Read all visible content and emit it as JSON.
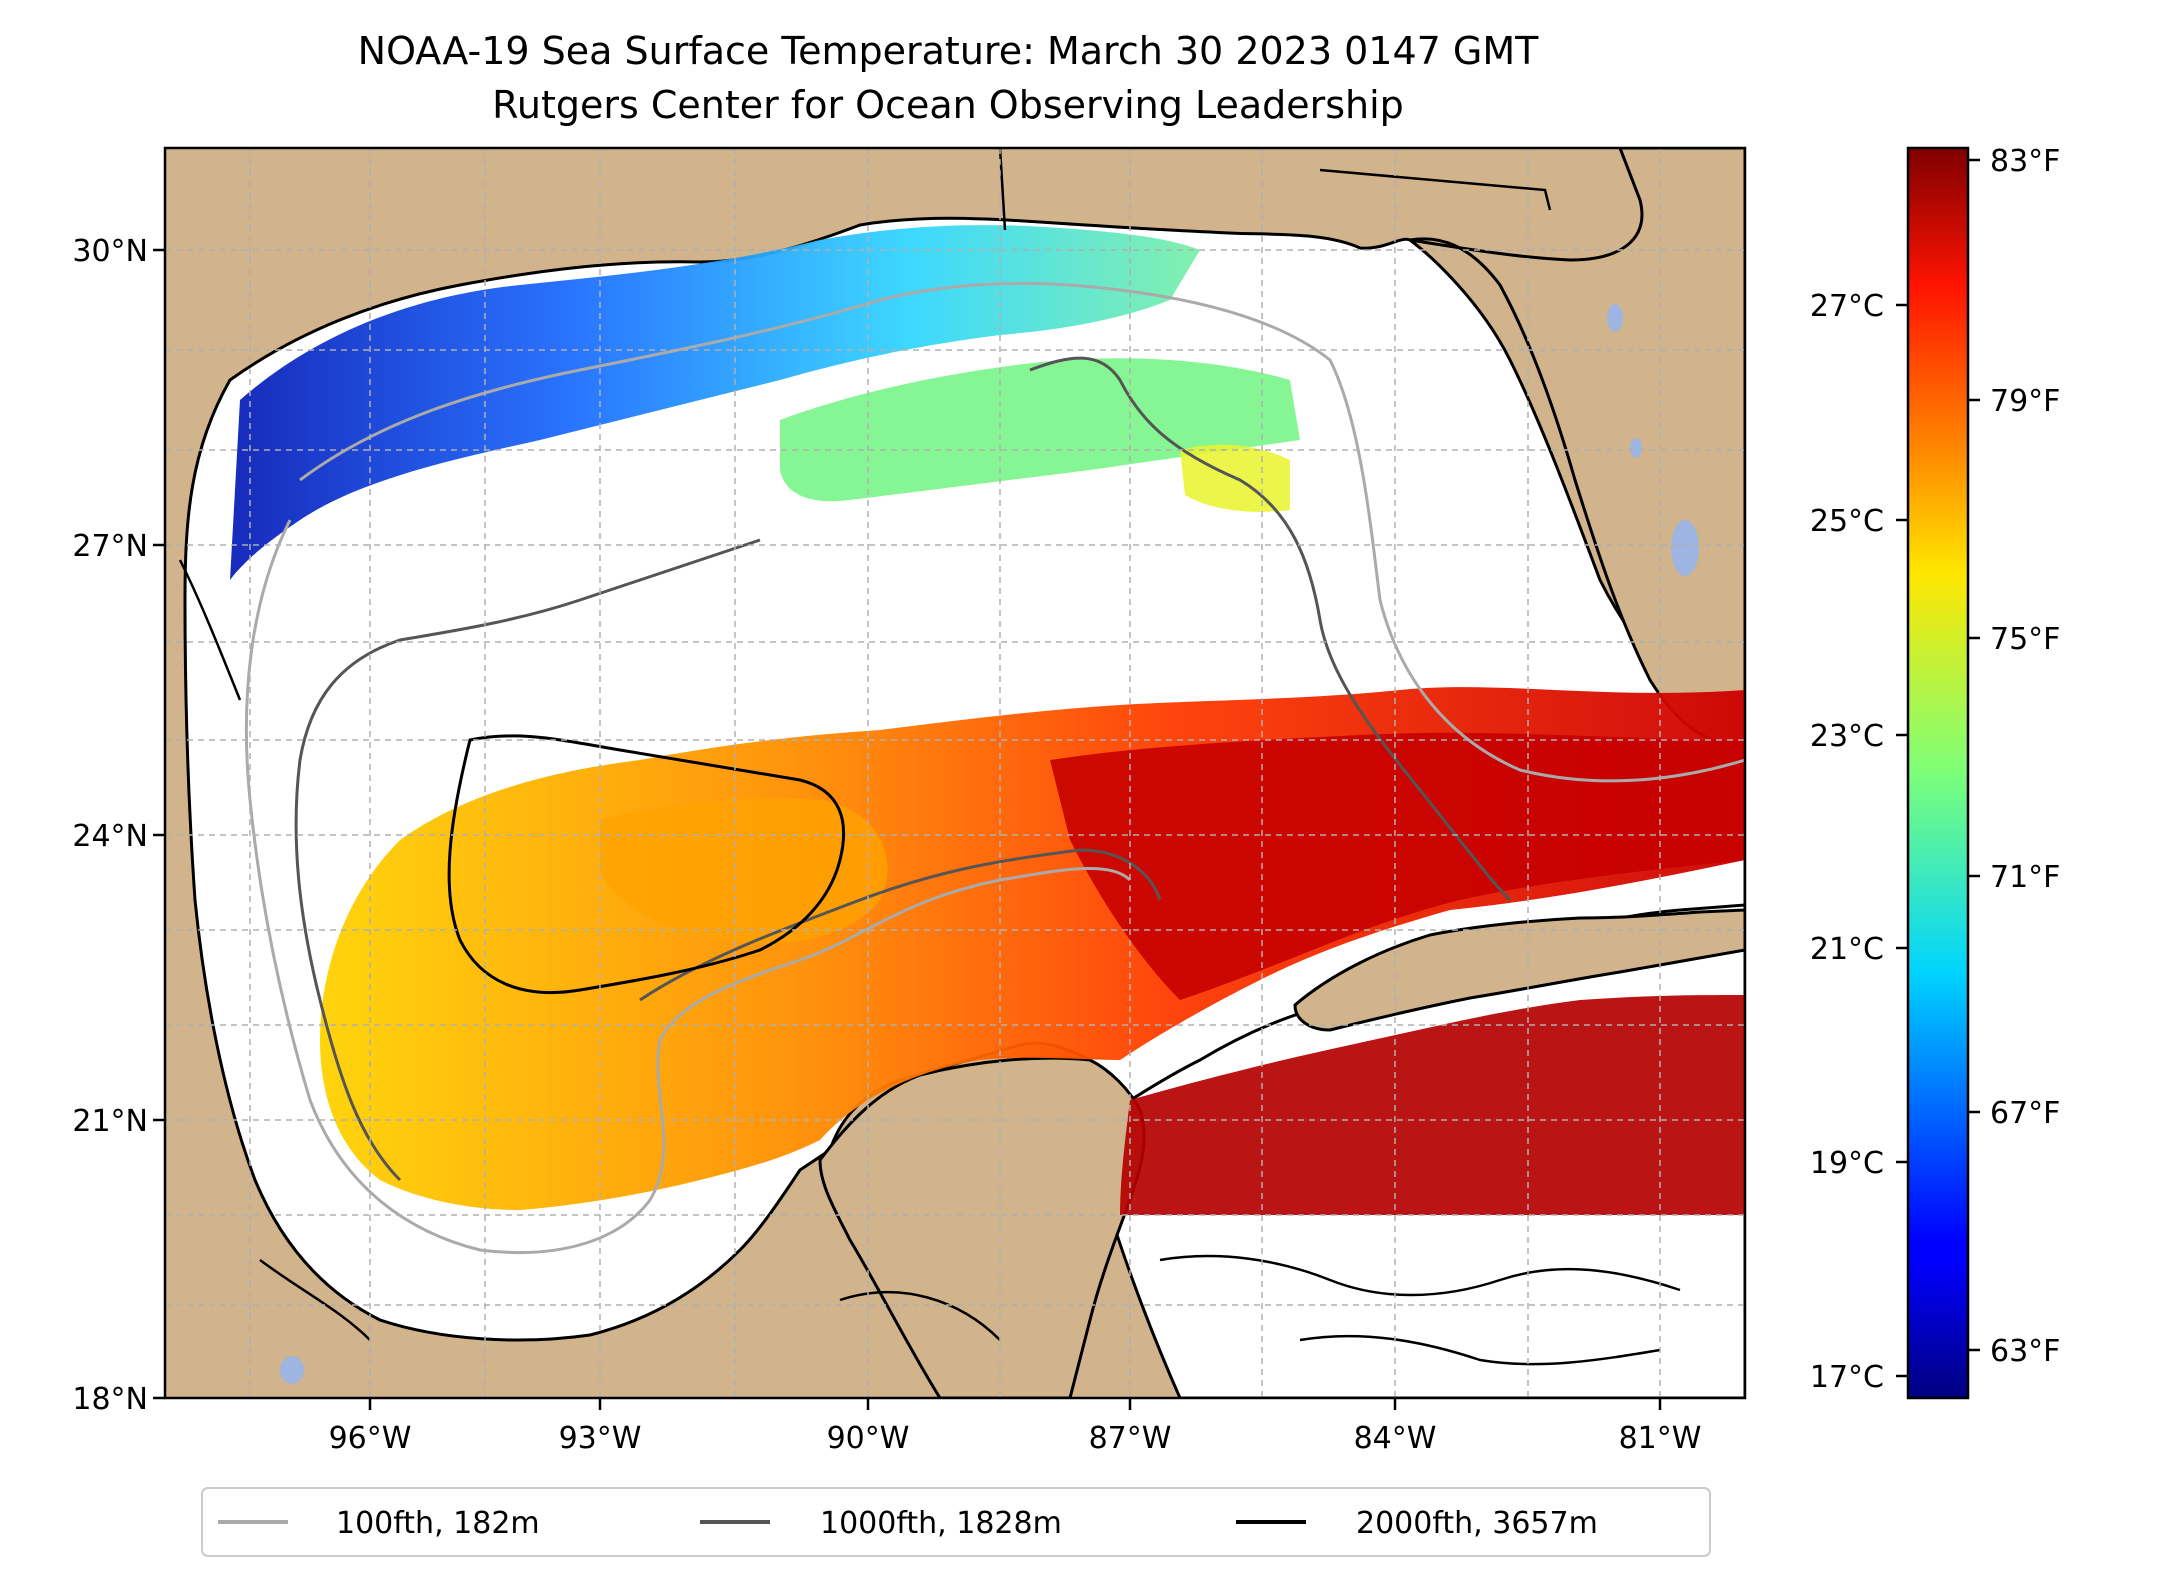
{
  "title": {
    "line1": "NOAA-19 Sea Surface Temperature: March 30 2023 0147 GMT",
    "line2": "Rutgers Center for Ocean Observing Leadership"
  },
  "map": {
    "lat_ticks": [
      "30°N",
      "27°N",
      "24°N",
      "21°N",
      "18°N"
    ],
    "lon_ticks": [
      "96°W",
      "93°W",
      "90°W",
      "87°W",
      "84°W",
      "81°W"
    ],
    "lat_range": [
      18,
      31
    ],
    "lon_range": [
      -98.3,
      -80.2
    ],
    "gridlines": true,
    "land_color": "#d2b48c",
    "lake_color": "#9db5e0",
    "no_data_color": "#ffffff"
  },
  "colorbar": {
    "colormap": "jet",
    "celsius_ticks": [
      "27°C",
      "25°C",
      "23°C",
      "21°C",
      "19°C",
      "17°C"
    ],
    "fahrenheit_ticks": [
      "83°F",
      "79°F",
      "75°F",
      "71°F",
      "67°F",
      "63°F"
    ],
    "min_f": 62,
    "max_f": 84
  },
  "legend": {
    "items": [
      {
        "label": "100fth, 182m",
        "color": "#aaaaaa"
      },
      {
        "label": "1000fth, 1828m",
        "color": "#555555"
      },
      {
        "label": "2000fth, 3657m",
        "color": "#000000"
      }
    ]
  }
}
